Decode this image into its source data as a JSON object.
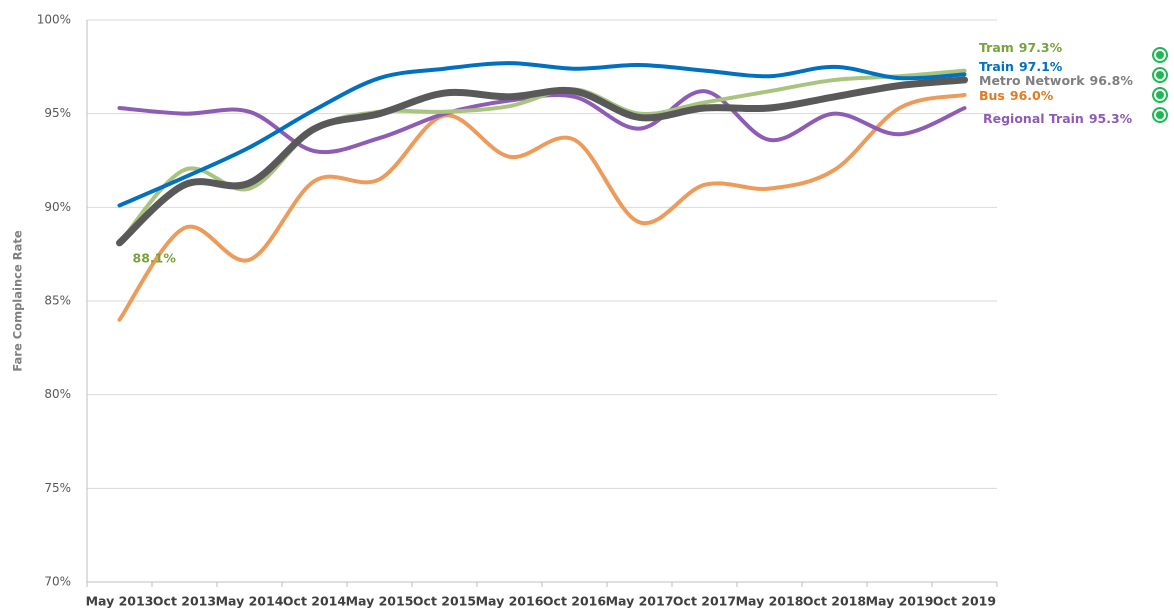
{
  "chart_data": {
    "type": "line",
    "y_label": "Fare Complaince Rate",
    "categories": [
      "May 2013",
      "Oct 2013",
      "May 2014",
      "Oct 2014",
      "May 2015",
      "Oct 2015",
      "May 2016",
      "Oct 2016",
      "May 2017",
      "Oct 2017",
      "May 2018",
      "Oct 2018",
      "May 2019",
      "Oct 2019"
    ],
    "ylim": [
      70,
      100
    ],
    "yticks": [
      {
        "value": 70,
        "label": "70%"
      },
      {
        "value": 75,
        "label": "75%"
      },
      {
        "value": 80,
        "label": "80%"
      },
      {
        "value": 85,
        "label": "85%"
      },
      {
        "value": 90,
        "label": "90%"
      },
      {
        "value": 95,
        "label": "95%"
      },
      {
        "value": 100,
        "label": "100%"
      }
    ],
    "grid": true,
    "series": [
      {
        "name": "Bus",
        "color": "#ed9b5a",
        "values": [
          84.0,
          88.9,
          87.2,
          91.4,
          91.5,
          94.9,
          92.7,
          93.6,
          89.2,
          91.2,
          91.0,
          92.0,
          95.3,
          96.0
        ],
        "value_labels": [
          null,
          null,
          null,
          null,
          null,
          null,
          null,
          null,
          null,
          null,
          null,
          null,
          null,
          "96.0%"
        ]
      },
      {
        "name": "Regional Train",
        "color": "#8e5cb5",
        "values": [
          95.3,
          95.0,
          95.1,
          93.0,
          93.7,
          95.0,
          95.7,
          95.9,
          94.2,
          96.2,
          93.6,
          95.0,
          93.9,
          95.3
        ],
        "value_labels": [
          null,
          null,
          null,
          null,
          null,
          null,
          null,
          null,
          null,
          null,
          null,
          null,
          null,
          "95.3%"
        ]
      },
      {
        "name": "Tram",
        "color": "#a9c47f",
        "values": [
          88.1,
          92.0,
          91.0,
          94.2,
          95.1,
          95.1,
          95.4,
          96.3,
          95.0,
          95.6,
          96.2,
          96.8,
          97.0,
          97.3
        ],
        "value_labels": [
          "88.1%",
          null,
          null,
          null,
          null,
          null,
          null,
          null,
          null,
          null,
          null,
          null,
          null,
          "97.3%"
        ]
      },
      {
        "name": "Train",
        "color": "#0070c0",
        "values": [
          90.1,
          91.6,
          93.2,
          95.2,
          96.9,
          97.4,
          97.7,
          97.4,
          97.6,
          97.3,
          97.0,
          97.5,
          96.9,
          97.1
        ],
        "value_labels": [
          null,
          null,
          null,
          null,
          null,
          null,
          null,
          null,
          null,
          null,
          null,
          null,
          null,
          "97.1%"
        ]
      },
      {
        "name": "Metro Network",
        "color": "#595959",
        "values": [
          88.1,
          91.2,
          91.3,
          94.2,
          95.0,
          96.1,
          95.9,
          96.2,
          94.8,
          95.3,
          95.3,
          95.9,
          96.5,
          96.8
        ],
        "value_labels": [
          null,
          null,
          null,
          null,
          null,
          null,
          null,
          null,
          null,
          null,
          null,
          null,
          null,
          "96.8%"
        ]
      }
    ]
  }
}
